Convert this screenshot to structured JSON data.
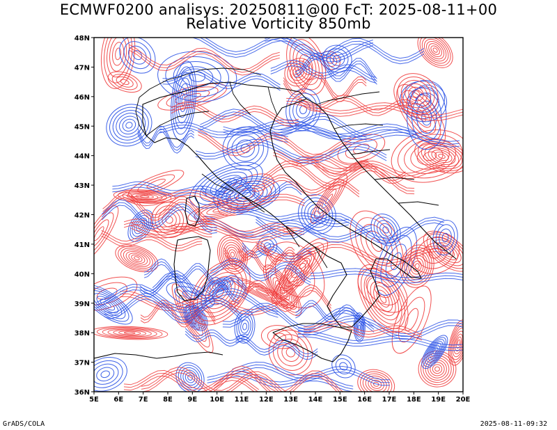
{
  "title": {
    "line1": "ECMWF0200 analisys: 20250811@00 FcT: 2025-08-11+00",
    "line2": "Relative Vorticity 850mb"
  },
  "footer": {
    "left": "GrADS/COLA",
    "right": "2025-08-11-09:32"
  },
  "map": {
    "lon_ticks": [
      "5E",
      "6E",
      "7E",
      "8E",
      "9E",
      "10E",
      "11E",
      "12E",
      "13E",
      "14E",
      "15E",
      "16E",
      "17E",
      "18E",
      "19E",
      "20E"
    ],
    "lat_ticks": [
      "48N",
      "47N",
      "46N",
      "45N",
      "44N",
      "43N",
      "42N",
      "41N",
      "40N",
      "39N",
      "38N",
      "37N",
      "36N"
    ],
    "lon_range": [
      5,
      20
    ],
    "lat_range": [
      36,
      48
    ],
    "colors": {
      "positive": "#f03c3c",
      "negative": "#2850e6",
      "zero": "#999999",
      "coast": "#000000"
    }
  }
}
